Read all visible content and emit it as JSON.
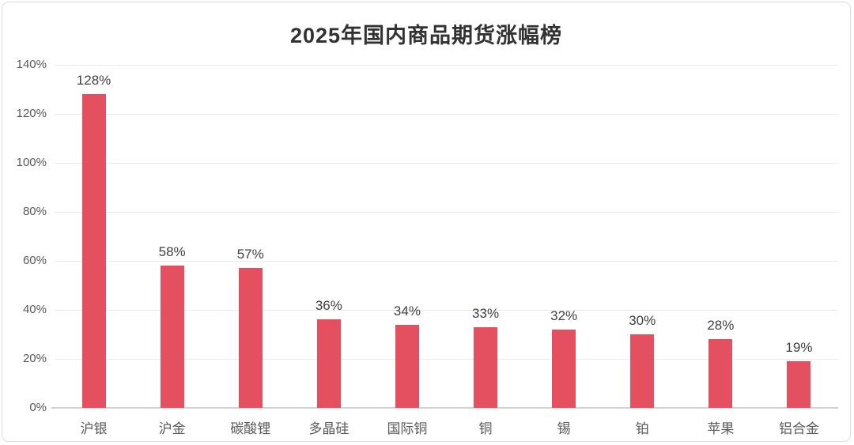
{
  "chart_data": {
    "type": "bar",
    "title": "2025年国内商品期货涨幅榜",
    "categories": [
      "沪银",
      "沪金",
      "碳酸锂",
      "多晶硅",
      "国际铜",
      "铜",
      "锡",
      "铂",
      "苹果",
      "铝合金"
    ],
    "values": [
      128,
      58,
      57,
      36,
      34,
      33,
      32,
      30,
      28,
      19
    ],
    "bar_labels": [
      "128%",
      "58%",
      "57%",
      "36%",
      "34%",
      "33%",
      "32%",
      "30%",
      "28%",
      "19%"
    ],
    "xlabel": "",
    "ylabel": "",
    "ylim": [
      0,
      140
    ],
    "ytick_step": 20,
    "ytick_labels": [
      "0%",
      "20%",
      "40%",
      "60%",
      "80%",
      "100%",
      "120%",
      "140%"
    ],
    "grid": true,
    "legend_position": "none",
    "colors": {
      "bar": "#e4505f",
      "title_text": "#323232",
      "axis_text": "#595959",
      "value_label_text": "#404040",
      "gridline": "#e9e9e9",
      "axis_line": "#d2d2d2",
      "frame_border": "#dcdcdc",
      "background": "#ffffff"
    }
  }
}
